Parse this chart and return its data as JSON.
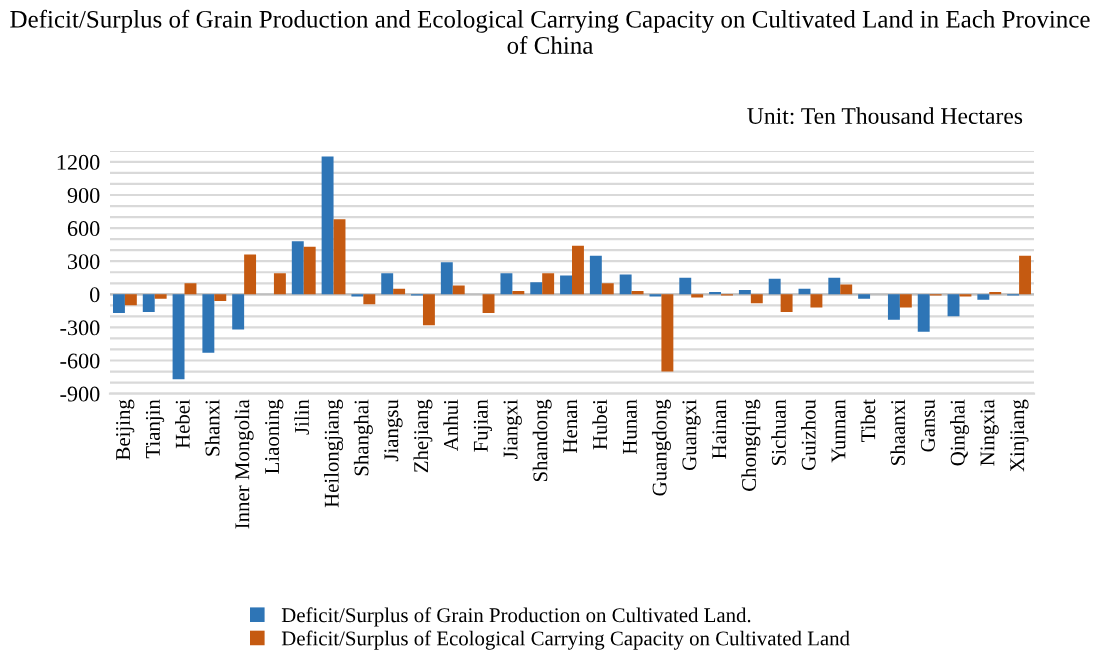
{
  "chart_data": {
    "type": "bar",
    "title": "Deficit/Surplus of Grain Production and Ecological Carrying Capacity on Cultivated Land in Each Province of China",
    "annotations": [
      "Unit: Ten Thousand Hectares"
    ],
    "categories": [
      "Beijing",
      "Tianjin",
      "Hebei",
      "Shanxi",
      "Inner Mongolia",
      "Liaoning",
      "Jilin",
      "Heilongjiang",
      "Shanghai",
      "Jiangsu",
      "Zhejiang",
      "Anhui",
      "Fujian",
      "Jiangxi",
      "Shandong",
      "Henan",
      "Hubei",
      "Hunan",
      "Guangdong",
      "Guangxi",
      "Hainan",
      "Chongqing",
      "Sichuan",
      "Guizhou",
      "Yunnan",
      "Tibet",
      "Shaanxi",
      "Gansu",
      "Qinghai",
      "Ningxia",
      "Xinjiang"
    ],
    "series": [
      {
        "name": "Deficit/Surplus of Grain Production on Cultivated Land.",
        "color": "#2e75b6",
        "values": [
          -170,
          -160,
          -770,
          -530,
          -320,
          0,
          480,
          1250,
          -20,
          190,
          -10,
          290,
          0,
          190,
          110,
          170,
          350,
          180,
          -20,
          150,
          20,
          40,
          140,
          50,
          150,
          -40,
          -230,
          -340,
          -200,
          -50,
          -10
        ]
      },
      {
        "name": "Deficit/Surplus of Ecological Carrying Capacity on Cultivated Land",
        "color": "#c55a11",
        "values": [
          -100,
          -40,
          100,
          -60,
          360,
          190,
          430,
          680,
          -90,
          50,
          -280,
          80,
          -170,
          30,
          190,
          440,
          100,
          30,
          -700,
          -30,
          -10,
          -80,
          -160,
          -120,
          90,
          0,
          -120,
          -10,
          -20,
          20,
          350
        ]
      }
    ],
    "ylim": [
      -900,
      1300
    ],
    "yticks": [
      -900,
      {
        "value": -800,
        "label": null
      },
      {
        "value": -700,
        "label": null
      },
      -600,
      {
        "value": -500,
        "label": null
      },
      {
        "value": -400,
        "label": null
      },
      -300,
      {
        "value": -200,
        "label": null
      },
      {
        "value": -100,
        "label": null
      },
      0,
      {
        "value": 100,
        "label": null
      },
      {
        "value": 200,
        "label": null
      },
      300,
      {
        "value": 400,
        "label": null
      },
      {
        "value": 500,
        "label": null
      },
      600,
      {
        "value": 700,
        "label": null
      },
      {
        "value": 800,
        "label": null
      },
      900,
      {
        "value": 1000,
        "label": null
      },
      {
        "value": 1100,
        "label": null
      },
      1200,
      {
        "value": 1300,
        "label": null
      }
    ],
    "grid": "y",
    "legend": "bottom"
  }
}
